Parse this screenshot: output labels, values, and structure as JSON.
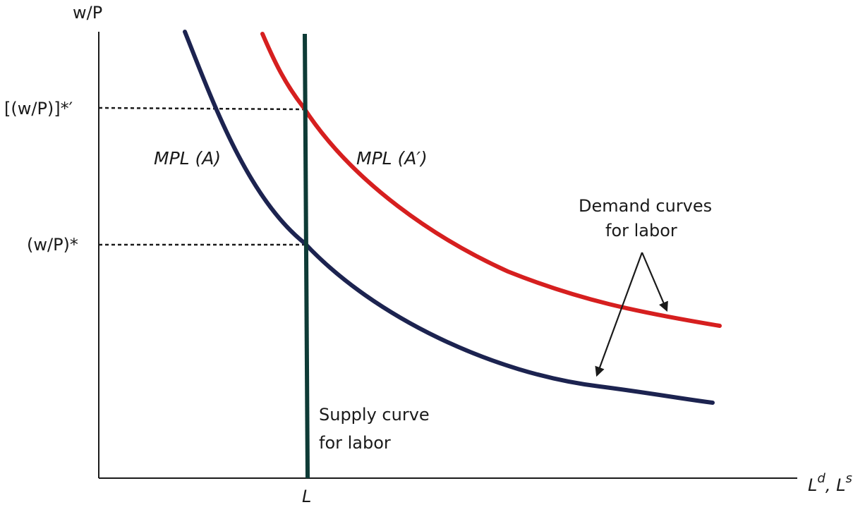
{
  "axes": {
    "y_label": "w/P",
    "x_label_base": "L",
    "x_label_sup1": "d",
    "x_label_sep": ", L",
    "x_label_sup2": "s"
  },
  "ticks": {
    "y_high": "[(w/P)]*′",
    "y_low": "(w/P)*",
    "x_L": "L"
  },
  "curves": {
    "mpl_a": {
      "label": "MPL (A)",
      "color": "#1c2350"
    },
    "mpl_a_prime": {
      "label": "MPL (A′)",
      "color": "#d61f1f"
    },
    "supply": {
      "color": "#0e3b36"
    }
  },
  "annotations": {
    "demand_line1": "Demand curves",
    "demand_line2": "for labor",
    "supply_line1": "Supply curve",
    "supply_line2": "for labor"
  }
}
